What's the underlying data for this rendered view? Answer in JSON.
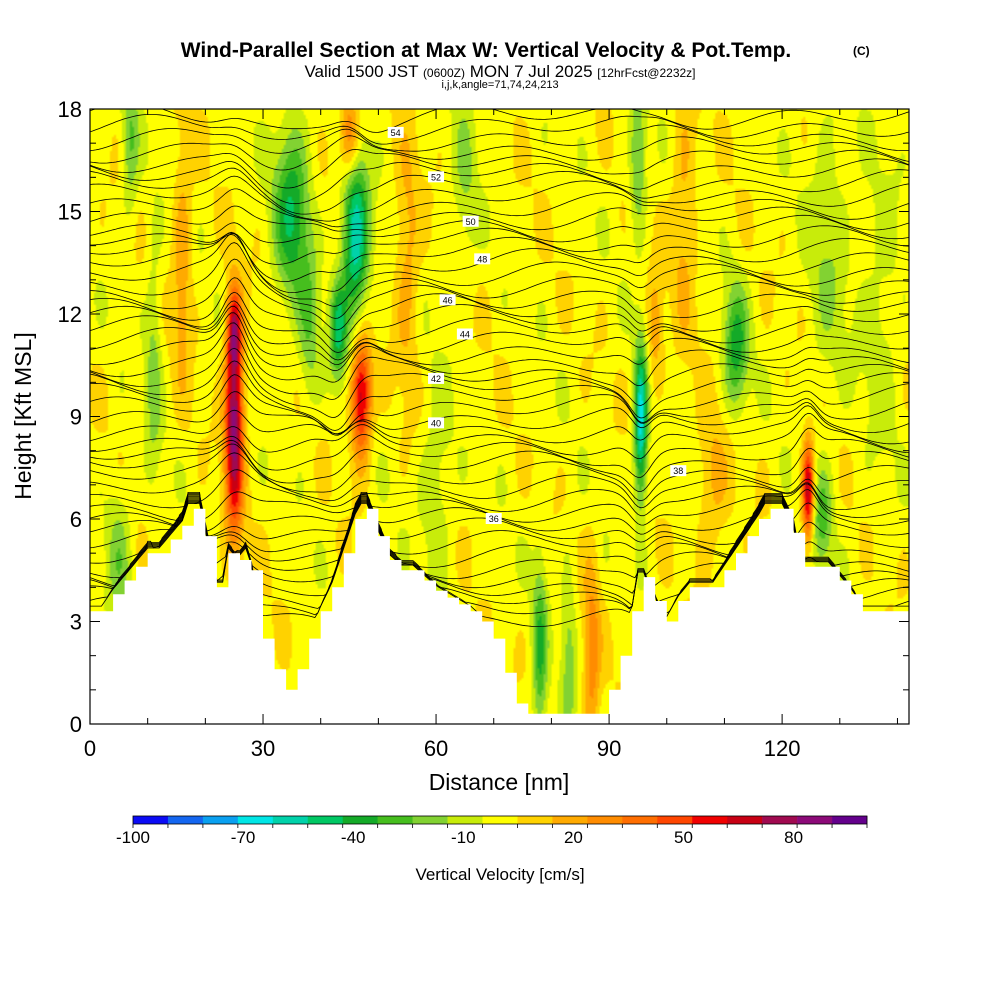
{
  "title": {
    "main": "Wind-Parallel Section at Max W: Vertical Velocity & Pot.Temp.",
    "copyright": "(C)",
    "valid_prefix": "Valid 1500 JST",
    "valid_utc": "(0600Z)",
    "valid_date": "MON 7 Jul 2025",
    "forecast": "[12hrFcst@2232z]",
    "indices": "i,j,k,angle=71,74,24,213"
  },
  "chart_data": {
    "type": "heatmap",
    "xlabel": "Distance [nm]",
    "ylabel": "Height [Kft MSL]",
    "xlim": [
      0,
      142
    ],
    "ylim": [
      0,
      18
    ],
    "x_ticks": [
      0,
      30,
      60,
      90,
      120
    ],
    "y_ticks": [
      0,
      3,
      6,
      9,
      12,
      15,
      18
    ],
    "colorbar": {
      "label": "Vertical Velocity [cm/s]",
      "tick_labels": [
        -100,
        -70,
        -40,
        -10,
        20,
        50,
        80
      ],
      "levels": [
        -100,
        -90,
        -80,
        -70,
        -60,
        -50,
        -40,
        -30,
        -20,
        -10,
        0,
        10,
        20,
        30,
        40,
        50,
        60,
        70,
        80,
        90,
        100
      ],
      "colors": [
        "#0b0bf5",
        "#1466f0",
        "#0aa0f0",
        "#00e6e6",
        "#00d2aa",
        "#00c864",
        "#14aa28",
        "#46be1e",
        "#82d232",
        "#c8ec0a",
        "#ffff00",
        "#ffd200",
        "#ffaa00",
        "#ff8c00",
        "#ff6e00",
        "#ff4600",
        "#f00000",
        "#c80014",
        "#a00a50",
        "#8c0a78",
        "#64008c"
      ]
    },
    "terrain_kft": [
      [
        0,
        3.3
      ],
      [
        2,
        3.3
      ],
      [
        4,
        3.8
      ],
      [
        6,
        4.2
      ],
      [
        8,
        4.6
      ],
      [
        10,
        5.0
      ],
      [
        12,
        5.0
      ],
      [
        14,
        5.4
      ],
      [
        16,
        5.8
      ],
      [
        17,
        6.3
      ],
      [
        19,
        6.3
      ],
      [
        20,
        5.5
      ],
      [
        21,
        4.6
      ],
      [
        22,
        4.0
      ],
      [
        23,
        4.0
      ],
      [
        24,
        5.0
      ],
      [
        25,
        4.8
      ],
      [
        26,
        4.8
      ],
      [
        27,
        5.0
      ],
      [
        28,
        4.5
      ],
      [
        29,
        3.3
      ],
      [
        30,
        2.5
      ],
      [
        32,
        1.6
      ],
      [
        34,
        1.0
      ],
      [
        36,
        1.6
      ],
      [
        38,
        2.5
      ],
      [
        40,
        3.3
      ],
      [
        42,
        4.0
      ],
      [
        44,
        5.0
      ],
      [
        46,
        6.0
      ],
      [
        47,
        6.3
      ],
      [
        48,
        6.3
      ],
      [
        50,
        5.5
      ],
      [
        52,
        4.8
      ],
      [
        54,
        4.5
      ],
      [
        56,
        4.5
      ],
      [
        58,
        4.2
      ],
      [
        60,
        3.9
      ],
      [
        62,
        3.7
      ],
      [
        64,
        3.5
      ],
      [
        66,
        3.3
      ],
      [
        68,
        3.0
      ],
      [
        70,
        2.5
      ],
      [
        72,
        1.5
      ],
      [
        74,
        0.6
      ],
      [
        75,
        0.3
      ],
      [
        80,
        0.3
      ],
      [
        85,
        0.3
      ],
      [
        88,
        0.3
      ],
      [
        90,
        1.0
      ],
      [
        92,
        2.0
      ],
      [
        94,
        3.3
      ],
      [
        95,
        4.3
      ],
      [
        96,
        4.3
      ],
      [
        97,
        3.8
      ],
      [
        98,
        3.6
      ],
      [
        99,
        3.0
      ],
      [
        100,
        3.0
      ],
      [
        102,
        3.6
      ],
      [
        104,
        4.0
      ],
      [
        108,
        4.0
      ],
      [
        110,
        4.5
      ],
      [
        112,
        5.0
      ],
      [
        114,
        5.5
      ],
      [
        116,
        6.0
      ],
      [
        117,
        6.3
      ],
      [
        120,
        6.3
      ],
      [
        122,
        5.6
      ],
      [
        123,
        4.6
      ],
      [
        126,
        4.6
      ],
      [
        128,
        4.6
      ],
      [
        130,
        4.2
      ],
      [
        132,
        3.8
      ],
      [
        134,
        3.3
      ],
      [
        136,
        3.3
      ],
      [
        138,
        3.3
      ],
      [
        140,
        3.3
      ],
      [
        142,
        3.3
      ]
    ],
    "w_features": [
      {
        "x": 25,
        "y": 8.8,
        "sx": 1.1,
        "sy": 2.2,
        "w": 90
      },
      {
        "x": 25,
        "y": 11.5,
        "sx": 0.8,
        "sy": 0.8,
        "w": 50
      },
      {
        "x": 47,
        "y": 9.6,
        "sx": 1.2,
        "sy": 1.2,
        "w": 75
      },
      {
        "x": 45,
        "y": 17.2,
        "sx": 1.2,
        "sy": 0.9,
        "w": 45
      },
      {
        "x": 46,
        "y": 14.2,
        "sx": 1.6,
        "sy": 1.8,
        "w": -65
      },
      {
        "x": 43,
        "y": 11.5,
        "sx": 1.0,
        "sy": 1.0,
        "w": -45
      },
      {
        "x": 35,
        "y": 15.0,
        "sx": 2.2,
        "sy": 1.8,
        "w": -45
      },
      {
        "x": 38,
        "y": 11.5,
        "sx": 1.3,
        "sy": 1.6,
        "w": -22
      },
      {
        "x": 95.5,
        "y": 8.8,
        "sx": 0.8,
        "sy": 1.6,
        "w": -70
      },
      {
        "x": 95,
        "y": 16.5,
        "sx": 1.0,
        "sy": 1.5,
        "w": -30
      },
      {
        "x": 98,
        "y": 11.5,
        "sx": 1.0,
        "sy": 1.2,
        "w": 22
      },
      {
        "x": 112,
        "y": 11.0,
        "sx": 1.5,
        "sy": 1.3,
        "w": -40
      },
      {
        "x": 124.5,
        "y": 6.8,
        "sx": 0.7,
        "sy": 1.0,
        "w": 75
      },
      {
        "x": 127,
        "y": 6.0,
        "sx": 1.2,
        "sy": 1.0,
        "w": -30
      },
      {
        "x": 78,
        "y": 2.0,
        "sx": 0.9,
        "sy": 2.0,
        "w": -35
      },
      {
        "x": 83,
        "y": 2.0,
        "sx": 0.9,
        "sy": 2.0,
        "w": -20
      },
      {
        "x": 87,
        "y": 2.0,
        "sx": 1.0,
        "sy": 2.0,
        "w": 30
      },
      {
        "x": 7,
        "y": 17.0,
        "sx": 1.0,
        "sy": 1.5,
        "w": -25
      },
      {
        "x": 11,
        "y": 10.5,
        "sx": 1.0,
        "sy": 2.5,
        "w": -20
      },
      {
        "x": 16,
        "y": 13.5,
        "sx": 1.2,
        "sy": 2.5,
        "w": 22
      },
      {
        "x": 55,
        "y": 13.5,
        "sx": 1.5,
        "sy": 2.5,
        "w": 20
      },
      {
        "x": 65,
        "y": 16.0,
        "sx": 1.5,
        "sy": 2.0,
        "w": -15
      },
      {
        "x": 103,
        "y": 15.0,
        "sx": 1.5,
        "sy": 2.5,
        "w": 18
      },
      {
        "x": 128,
        "y": 14.0,
        "sx": 2.5,
        "sy": 3.0,
        "w": -15
      },
      {
        "x": 137,
        "y": 12.0,
        "sx": 2.5,
        "sy": 3.0,
        "w": -12
      },
      {
        "x": 5,
        "y": 5.0,
        "sx": 1.5,
        "sy": 1.5,
        "w": -20
      },
      {
        "x": 60,
        "y": 7.0,
        "sx": 2.0,
        "sy": 2.0,
        "w": -15
      },
      {
        "x": 108,
        "y": 7.0,
        "sx": 2.0,
        "sy": 1.5,
        "w": 18
      }
    ],
    "theta_contours": [
      {
        "value": 36,
        "label_x": 70,
        "y_mid": 6.0
      },
      {
        "value": 38,
        "label_x": 102,
        "y_mid": 7.4
      },
      {
        "value": 40,
        "label_x": 60,
        "y_mid": 8.8
      },
      {
        "value": 42,
        "label_x": 60,
        "y_mid": 10.1
      },
      {
        "value": 44,
        "label_x": 65,
        "y_mid": 11.4
      },
      {
        "value": 46,
        "label_x": 62,
        "y_mid": 12.4
      },
      {
        "value": 48,
        "label_x": 68,
        "y_mid": 13.6
      },
      {
        "value": 50,
        "label_x": 66,
        "y_mid": 14.7
      },
      {
        "value": 52,
        "label_x": 60,
        "y_mid": 16.0
      },
      {
        "value": 54,
        "label_x": 53,
        "y_mid": 17.3
      }
    ]
  }
}
